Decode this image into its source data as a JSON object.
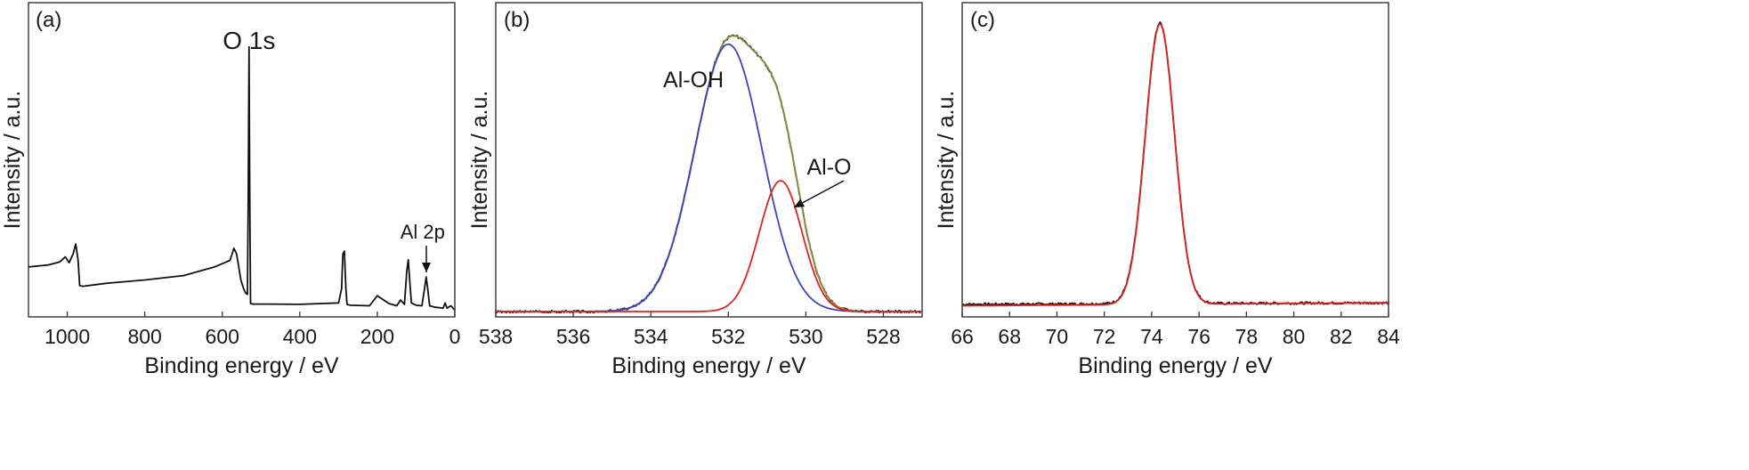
{
  "chart_data": [
    {
      "panel": "(a)",
      "type": "line",
      "xlabel": "Binding energy / eV",
      "ylabel": "Intensity / a.u.",
      "xlim": [
        1100,
        0
      ],
      "x_reversed": true,
      "xticks": [
        1000,
        800,
        600,
        400,
        200,
        0
      ],
      "y_ticks_shown": false,
      "annotations": [
        {
          "text": "O 1s",
          "x": 531
        },
        {
          "text": "Al 2p",
          "x": 74,
          "arrow": true
        }
      ],
      "series": [
        {
          "color": "#111111",
          "x": [
            1100,
            1050,
            1020,
            1005,
            1000,
            995,
            985,
            978,
            972,
            968,
            960,
            900,
            800,
            700,
            620,
            580,
            570,
            563,
            558,
            552,
            545,
            540,
            535,
            533,
            531,
            529,
            527,
            520,
            480,
            400,
            300,
            292,
            289,
            285,
            281,
            278,
            270,
            220,
            200,
            170,
            150,
            140,
            130,
            124,
            120,
            116,
            112,
            100,
            85,
            78,
            74,
            70,
            65,
            50,
            30,
            25,
            20,
            10,
            0
          ],
          "y": [
            0.155,
            0.162,
            0.172,
            0.19,
            0.18,
            0.17,
            0.2,
            0.235,
            0.18,
            0.09,
            0.088,
            0.098,
            0.11,
            0.125,
            0.155,
            0.178,
            0.22,
            0.2,
            0.16,
            0.11,
            0.08,
            0.065,
            0.06,
            0.4,
            0.92,
            0.4,
            0.028,
            0.026,
            0.026,
            0.025,
            0.03,
            0.08,
            0.2,
            0.21,
            0.08,
            0.025,
            0.022,
            0.02,
            0.055,
            0.028,
            0.02,
            0.04,
            0.025,
            0.14,
            0.18,
            0.1,
            0.03,
            0.022,
            0.02,
            0.08,
            0.12,
            0.08,
            0.02,
            0.015,
            0.012,
            0.03,
            0.012,
            0.02,
            0.005
          ]
        }
      ]
    },
    {
      "panel": "(b)",
      "type": "line",
      "xlabel": "Binding energy / eV",
      "ylabel": "Intensity / a.u.",
      "xlim": [
        538,
        527
      ],
      "x_reversed": true,
      "xticks": [
        538,
        536,
        534,
        532,
        530,
        528
      ],
      "y_ticks_shown": false,
      "annotations": [
        {
          "text": "Al-OH",
          "x": 532.9
        },
        {
          "text": "Al-O",
          "x": 529.4,
          "arrow_to": 530.3
        }
      ],
      "series": [
        {
          "color": "#111111",
          "model": "gaussian_sum",
          "peaks": [
            {
              "center": 532.0,
              "height": 0.93,
              "fwhm": 2.05
            },
            {
              "center": 530.65,
              "height": 0.455,
              "fwhm": 1.3
            }
          ],
          "baseline": 0.0,
          "noise": true
        },
        {
          "color": "#8c8f3a",
          "model": "gaussian_sum",
          "peaks": [
            {
              "center": 532.0,
              "height": 0.93,
              "fwhm": 2.05
            },
            {
              "center": 530.65,
              "height": 0.455,
              "fwhm": 1.3
            }
          ],
          "baseline": 0.0
        },
        {
          "color": "#3b47b5",
          "model": "gaussian_sum",
          "peaks": [
            {
              "center": 532.0,
              "height": 0.93,
              "fwhm": 2.05
            }
          ],
          "baseline": 0.0
        },
        {
          "color": "#e0231f",
          "model": "gaussian_sum",
          "peaks": [
            {
              "center": 530.65,
              "height": 0.455,
              "fwhm": 1.3
            }
          ],
          "baseline": 0.0
        }
      ]
    },
    {
      "panel": "(c)",
      "type": "line",
      "xlabel": "Binding energy / eV",
      "ylabel": "Intensity / a.u.",
      "xlim": [
        66,
        84
      ],
      "x_reversed": false,
      "xticks": [
        66,
        68,
        70,
        72,
        74,
        76,
        78,
        80,
        82,
        84
      ],
      "y_ticks_shown": false,
      "series": [
        {
          "color": "#111111",
          "model": "gaussian_sum",
          "peaks": [
            {
              "center": 74.35,
              "height": 0.975,
              "fwhm": 1.45
            }
          ],
          "baseline": 0.025,
          "baseline_slope": 0.0003,
          "noise": true
        },
        {
          "color": "#e0231f",
          "model": "gaussian_sum",
          "peaks": [
            {
              "center": 74.35,
              "height": 0.975,
              "fwhm": 1.45
            }
          ],
          "baseline": 0.02,
          "baseline_slope": 0.0006
        }
      ]
    }
  ]
}
